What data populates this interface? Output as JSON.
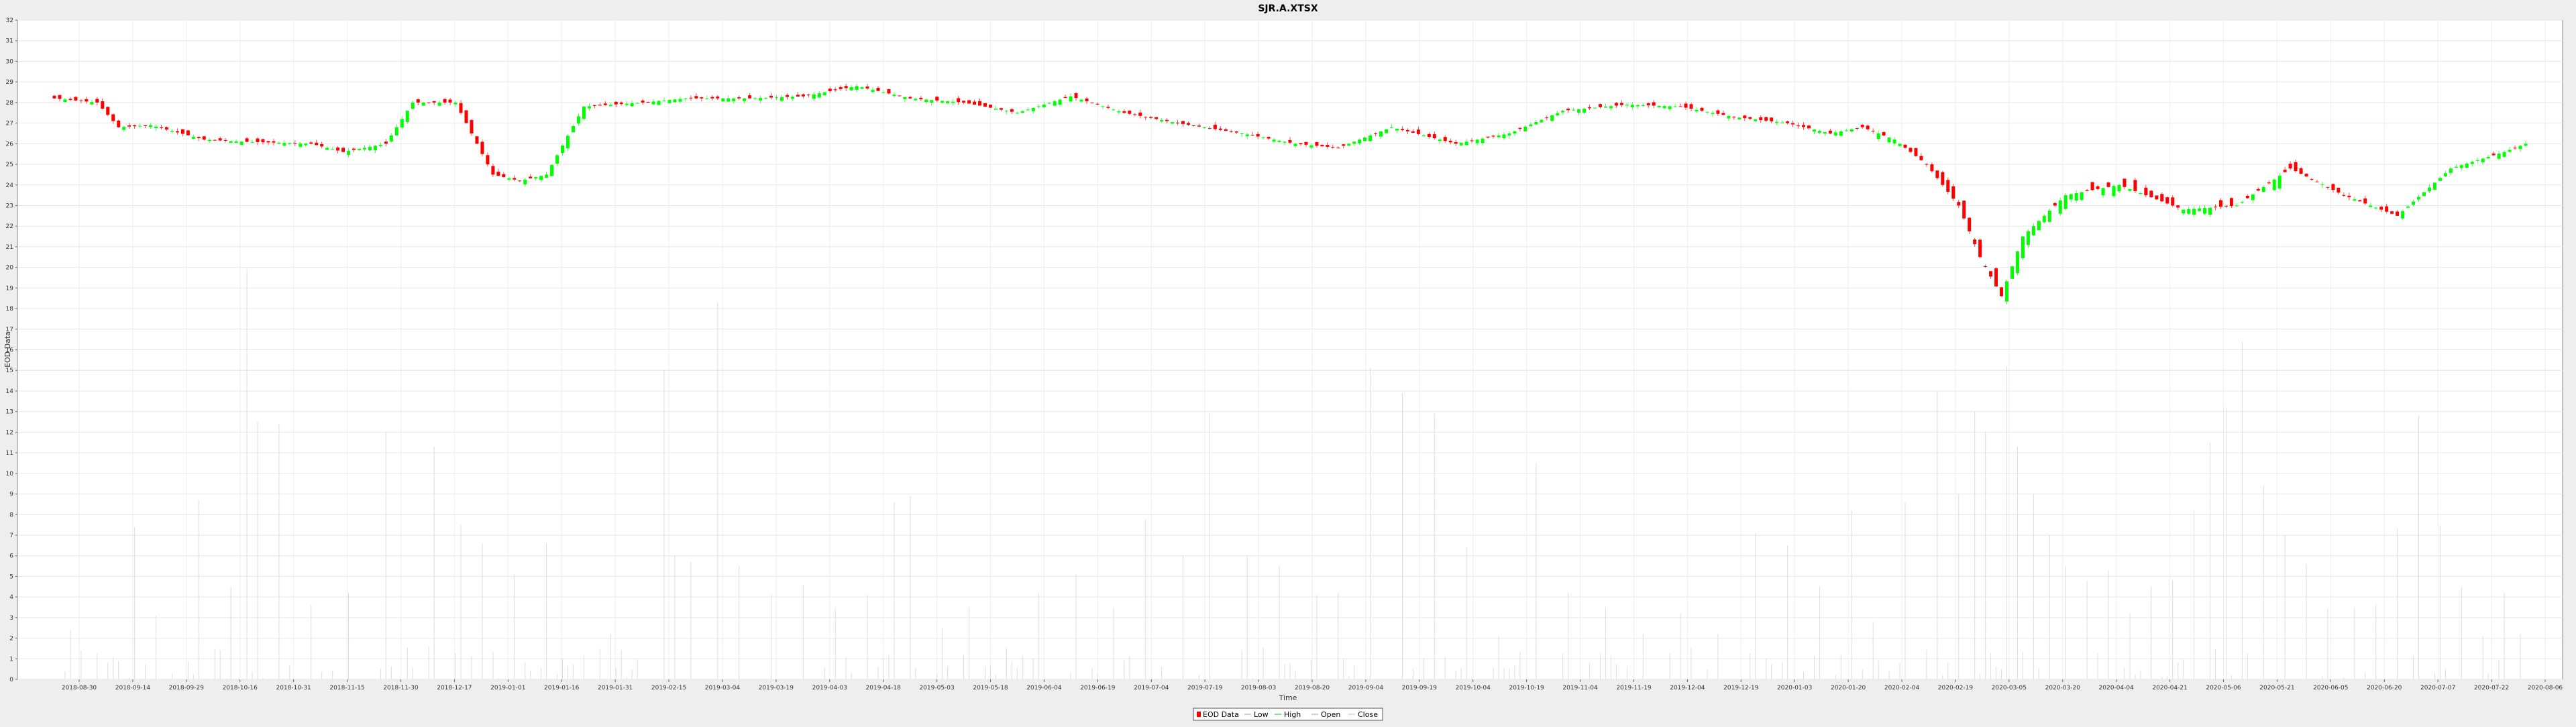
{
  "chart_data": {
    "type": "candlestick",
    "title": "SJR.A.XTSX",
    "xlabel": "Time",
    "ylabel": "EOD Data",
    "ylim": [
      0,
      32
    ],
    "y_ticks": [
      0,
      1,
      2,
      3,
      4,
      5,
      6,
      7,
      8,
      9,
      10,
      11,
      12,
      13,
      14,
      15,
      16,
      17,
      18,
      19,
      20,
      21,
      22,
      23,
      24,
      25,
      26,
      27,
      28,
      29,
      30,
      31,
      32
    ],
    "x_ticks": [
      "2018-08-30",
      "2018-09-14",
      "2018-09-29",
      "2018-10-16",
      "2018-10-31",
      "2018-11-15",
      "2018-11-30",
      "2018-12-17",
      "2019-01-01",
      "2019-01-16",
      "2019-01-31",
      "2019-02-15",
      "2019-03-04",
      "2019-03-19",
      "2019-04-03",
      "2019-04-18",
      "2019-05-03",
      "2019-05-18",
      "2019-06-04",
      "2019-06-19",
      "2019-07-04",
      "2019-07-19",
      "2019-08-03",
      "2019-08-20",
      "2019-09-04",
      "2019-09-19",
      "2019-10-04",
      "2019-10-19",
      "2019-11-04",
      "2019-11-19",
      "2019-12-04",
      "2019-12-19",
      "2020-01-03",
      "2020-01-20",
      "2020-02-04",
      "2020-02-19",
      "2020-03-05",
      "2020-03-20",
      "2020-04-04",
      "2020-04-21",
      "2020-05-06",
      "2020-05-21",
      "2020-06-05",
      "2020-06-20",
      "2020-07-07",
      "2020-07-22",
      "2020-08-06"
    ],
    "legend": [
      "EOD Data",
      "Low",
      "High",
      "Open",
      "Close"
    ],
    "legend_position": "bottom-center",
    "grid": true,
    "colors": {
      "up": "#00ff00",
      "down": "#ff0000",
      "volume": "#dddddd",
      "background": "#ffffff",
      "page": "#eeeeee"
    },
    "anchors": [
      {
        "i": 0,
        "c": 28.2
      },
      {
        "i": 8,
        "c": 28.0
      },
      {
        "i": 12,
        "c": 26.8
      },
      {
        "i": 18,
        "c": 26.9
      },
      {
        "i": 28,
        "c": 26.2
      },
      {
        "i": 35,
        "c": 26.1
      },
      {
        "i": 48,
        "c": 26.0
      },
      {
        "i": 54,
        "c": 25.6
      },
      {
        "i": 62,
        "c": 26.0
      },
      {
        "i": 67,
        "c": 28.0
      },
      {
        "i": 75,
        "c": 28.0
      },
      {
        "i": 82,
        "c": 24.5
      },
      {
        "i": 87,
        "c": 24.2
      },
      {
        "i": 92,
        "c": 24.5
      },
      {
        "i": 99,
        "c": 27.8
      },
      {
        "i": 110,
        "c": 28.0
      },
      {
        "i": 118,
        "c": 28.2
      },
      {
        "i": 130,
        "c": 28.2
      },
      {
        "i": 140,
        "c": 28.3
      },
      {
        "i": 150,
        "c": 28.8
      },
      {
        "i": 160,
        "c": 28.2
      },
      {
        "i": 170,
        "c": 28.0
      },
      {
        "i": 180,
        "c": 27.5
      },
      {
        "i": 190,
        "c": 28.3
      },
      {
        "i": 200,
        "c": 27.5
      },
      {
        "i": 210,
        "c": 27.0
      },
      {
        "i": 222,
        "c": 26.5
      },
      {
        "i": 232,
        "c": 26.0
      },
      {
        "i": 240,
        "c": 25.8
      },
      {
        "i": 250,
        "c": 26.8
      },
      {
        "i": 262,
        "c": 26.0
      },
      {
        "i": 272,
        "c": 26.5
      },
      {
        "i": 282,
        "c": 27.6
      },
      {
        "i": 294,
        "c": 27.9
      },
      {
        "i": 304,
        "c": 27.8
      },
      {
        "i": 314,
        "c": 27.3
      },
      {
        "i": 324,
        "c": 27.0
      },
      {
        "i": 332,
        "c": 26.5
      },
      {
        "i": 338,
        "c": 26.8
      },
      {
        "i": 344,
        "c": 26.2
      },
      {
        "i": 350,
        "c": 25.0
      },
      {
        "i": 356,
        "c": 23.0
      },
      {
        "i": 360,
        "c": 20.5
      },
      {
        "i": 364,
        "c": 18.6
      },
      {
        "i": 368,
        "c": 21.5
      },
      {
        "i": 376,
        "c": 23.5
      },
      {
        "i": 386,
        "c": 24.0
      },
      {
        "i": 398,
        "c": 22.8
      },
      {
        "i": 408,
        "c": 23.0
      },
      {
        "i": 418,
        "c": 24.8
      },
      {
        "i": 428,
        "c": 23.5
      },
      {
        "i": 438,
        "c": 22.5
      },
      {
        "i": 448,
        "c": 24.8
      },
      {
        "i": 458,
        "c": 25.6
      },
      {
        "i": 462,
        "c": 26.0
      }
    ],
    "volume_spikes": [
      {
        "i": 3,
        "v": 2.4
      },
      {
        "i": 15,
        "v": 7.4
      },
      {
        "i": 19,
        "v": 3.1
      },
      {
        "i": 27,
        "v": 8.7
      },
      {
        "i": 33,
        "v": 4.5
      },
      {
        "i": 36,
        "v": 19.9
      },
      {
        "i": 38,
        "v": 12.5
      },
      {
        "i": 42,
        "v": 12.4
      },
      {
        "i": 48,
        "v": 3.6
      },
      {
        "i": 55,
        "v": 4.2
      },
      {
        "i": 62,
        "v": 12.0
      },
      {
        "i": 71,
        "v": 11.3
      },
      {
        "i": 76,
        "v": 7.5
      },
      {
        "i": 80,
        "v": 6.6
      },
      {
        "i": 86,
        "v": 5.1
      },
      {
        "i": 92,
        "v": 6.6
      },
      {
        "i": 104,
        "v": 2.2
      },
      {
        "i": 114,
        "v": 15.0
      },
      {
        "i": 116,
        "v": 6.0
      },
      {
        "i": 119,
        "v": 5.7
      },
      {
        "i": 124,
        "v": 18.3
      },
      {
        "i": 128,
        "v": 5.5
      },
      {
        "i": 134,
        "v": 4.1
      },
      {
        "i": 140,
        "v": 4.6
      },
      {
        "i": 146,
        "v": 3.5
      },
      {
        "i": 152,
        "v": 4.1
      },
      {
        "i": 157,
        "v": 8.6
      },
      {
        "i": 160,
        "v": 8.9
      },
      {
        "i": 166,
        "v": 2.5
      },
      {
        "i": 171,
        "v": 3.5
      },
      {
        "i": 178,
        "v": 1.5
      },
      {
        "i": 184,
        "v": 4.2
      },
      {
        "i": 191,
        "v": 5.1
      },
      {
        "i": 198,
        "v": 3.5
      },
      {
        "i": 204,
        "v": 7.8
      },
      {
        "i": 211,
        "v": 6.0
      },
      {
        "i": 216,
        "v": 12.9
      },
      {
        "i": 223,
        "v": 6.0
      },
      {
        "i": 229,
        "v": 5.5
      },
      {
        "i": 236,
        "v": 4.1
      },
      {
        "i": 240,
        "v": 4.2
      },
      {
        "i": 246,
        "v": 15.1
      },
      {
        "i": 252,
        "v": 13.9
      },
      {
        "i": 258,
        "v": 12.9
      },
      {
        "i": 264,
        "v": 6.4
      },
      {
        "i": 270,
        "v": 2.1
      },
      {
        "i": 277,
        "v": 10.5
      },
      {
        "i": 283,
        "v": 4.2
      },
      {
        "i": 290,
        "v": 3.5
      },
      {
        "i": 297,
        "v": 2.2
      },
      {
        "i": 304,
        "v": 3.2
      },
      {
        "i": 311,
        "v": 2.2
      },
      {
        "i": 318,
        "v": 7.1
      },
      {
        "i": 324,
        "v": 6.5
      },
      {
        "i": 330,
        "v": 4.5
      },
      {
        "i": 336,
        "v": 8.2
      },
      {
        "i": 340,
        "v": 2.8
      },
      {
        "i": 346,
        "v": 8.6
      },
      {
        "i": 352,
        "v": 14.0
      },
      {
        "i": 356,
        "v": 9.0
      },
      {
        "i": 359,
        "v": 13.0
      },
      {
        "i": 361,
        "v": 12.0
      },
      {
        "i": 365,
        "v": 15.2
      },
      {
        "i": 367,
        "v": 11.3
      },
      {
        "i": 370,
        "v": 9.0
      },
      {
        "i": 373,
        "v": 7.0
      },
      {
        "i": 376,
        "v": 5.5
      },
      {
        "i": 380,
        "v": 4.8
      },
      {
        "i": 384,
        "v": 5.3
      },
      {
        "i": 388,
        "v": 3.2
      },
      {
        "i": 392,
        "v": 4.5
      },
      {
        "i": 396,
        "v": 4.8
      },
      {
        "i": 400,
        "v": 8.2
      },
      {
        "i": 403,
        "v": 11.5
      },
      {
        "i": 406,
        "v": 13.2
      },
      {
        "i": 409,
        "v": 16.4
      },
      {
        "i": 413,
        "v": 9.4
      },
      {
        "i": 417,
        "v": 7.0
      },
      {
        "i": 421,
        "v": 5.6
      },
      {
        "i": 425,
        "v": 3.4
      },
      {
        "i": 430,
        "v": 3.5
      },
      {
        "i": 434,
        "v": 3.6
      },
      {
        "i": 438,
        "v": 7.3
      },
      {
        "i": 442,
        "v": 12.8
      },
      {
        "i": 446,
        "v": 7.5
      },
      {
        "i": 450,
        "v": 4.5
      },
      {
        "i": 454,
        "v": 2.1
      },
      {
        "i": 458,
        "v": 4.2
      },
      {
        "i": 461,
        "v": 2.2
      }
    ]
  }
}
